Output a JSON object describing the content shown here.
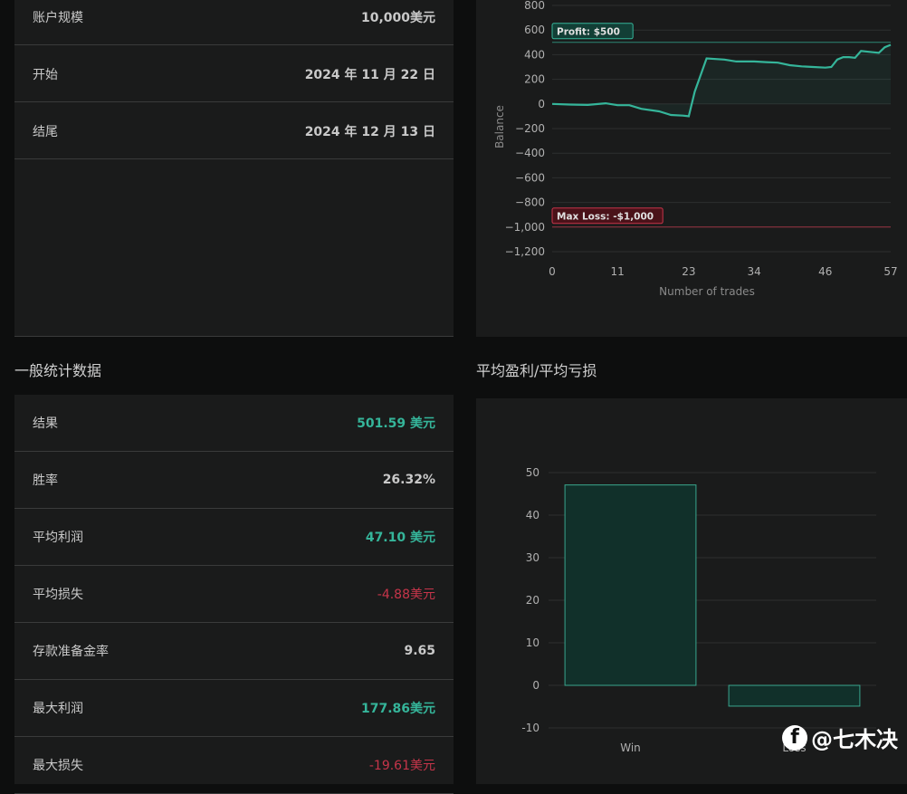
{
  "account_panel": {
    "rows": [
      {
        "label": "账户规模",
        "value": "10,000美元"
      },
      {
        "label": "开始",
        "value": "2024 年 11 月 22 日"
      },
      {
        "label": "结尾",
        "value": "2024 年 12 月 13 日"
      }
    ]
  },
  "stats": {
    "title": "一般统计数据",
    "rows": [
      {
        "label": "结果",
        "value": "501.59 美元",
        "tone": "green"
      },
      {
        "label": "胜率",
        "value": "26.32%",
        "tone": "plain"
      },
      {
        "label": "平均利润",
        "value": "47.10 美元",
        "tone": "green"
      },
      {
        "label": "平均损失",
        "value": "-4.88美元",
        "tone": "red"
      },
      {
        "label": "存款准备金率",
        "value": "9.65",
        "tone": "plain"
      },
      {
        "label": "最大利润",
        "value": "177.86美元",
        "tone": "green"
      },
      {
        "label": "最大损失",
        "value": "-19.61美元",
        "tone": "red"
      }
    ]
  },
  "avg_title": "平均盈利/平均亏损",
  "colors": {
    "green": "#35b59a",
    "red": "#c6354a",
    "panel": "#1a1b1b"
  },
  "chart_data": [
    {
      "type": "line",
      "xlabel": "Number of trades",
      "ylabel": "Balance",
      "xlim": [
        0,
        57
      ],
      "ylim": [
        -1200,
        800
      ],
      "x_ticks": [
        0,
        11,
        23,
        34,
        46,
        57
      ],
      "y_ticks": [
        800,
        600,
        400,
        200,
        0,
        -200,
        -400,
        -600,
        -800,
        -1000,
        -1200
      ],
      "y_tick_labels": [
        "800",
        "600",
        "400",
        "200",
        "0",
        "−200",
        "−400",
        "−600",
        "−800",
        "−1,000",
        "−1,200"
      ],
      "annotations": [
        {
          "label": "Profit: $500",
          "y": 500,
          "color": "#35b59a"
        },
        {
          "label": "Max Loss: -$1,000",
          "y": -1000,
          "color": "#c6354a"
        }
      ],
      "series": [
        {
          "x": [
            0,
            3,
            6,
            9,
            11,
            13,
            15,
            18,
            20,
            22,
            23,
            24,
            26,
            29,
            31,
            34,
            36,
            38,
            40,
            42,
            44,
            46,
            47,
            48,
            49,
            50,
            51,
            52,
            54,
            55,
            56,
            57
          ],
          "y": [
            0,
            -5,
            -8,
            5,
            -10,
            -10,
            -40,
            -60,
            -90,
            -95,
            -100,
            100,
            370,
            360,
            345,
            345,
            340,
            335,
            315,
            305,
            300,
            295,
            300,
            360,
            380,
            380,
            375,
            430,
            420,
            415,
            460,
            480
          ]
        }
      ]
    },
    {
      "type": "bar",
      "categories": [
        "Win",
        "Loss"
      ],
      "values": [
        47.1,
        -4.88
      ],
      "ylim": [
        -10,
        50
      ],
      "y_ticks": [
        50,
        40,
        30,
        20,
        10,
        0,
        -10
      ]
    }
  ],
  "watermark": "@七木决"
}
